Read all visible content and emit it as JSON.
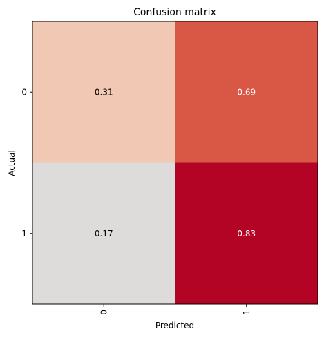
{
  "chart_data": {
    "type": "heatmap",
    "title": "Confusion matrix",
    "xlabel": "Predicted",
    "ylabel": "Actual",
    "x_categories": [
      "0",
      "1"
    ],
    "y_categories": [
      "0",
      "1"
    ],
    "values": [
      [
        0.31,
        0.69
      ],
      [
        0.17,
        0.83
      ]
    ],
    "value_labels": [
      [
        "0.31",
        "0.69"
      ],
      [
        "0.17",
        "0.83"
      ]
    ],
    "cell_colors": [
      [
        "#f1c8b4",
        "#d95745"
      ],
      [
        "#dddcdb",
        "#b40426"
      ]
    ],
    "cell_text_colors": [
      [
        "#000000",
        "#ffffff"
      ],
      [
        "#000000",
        "#ffffff"
      ]
    ],
    "colormap": "coolwarm",
    "x_tick_rotation": "vertical",
    "grid": false,
    "legend": "none"
  }
}
